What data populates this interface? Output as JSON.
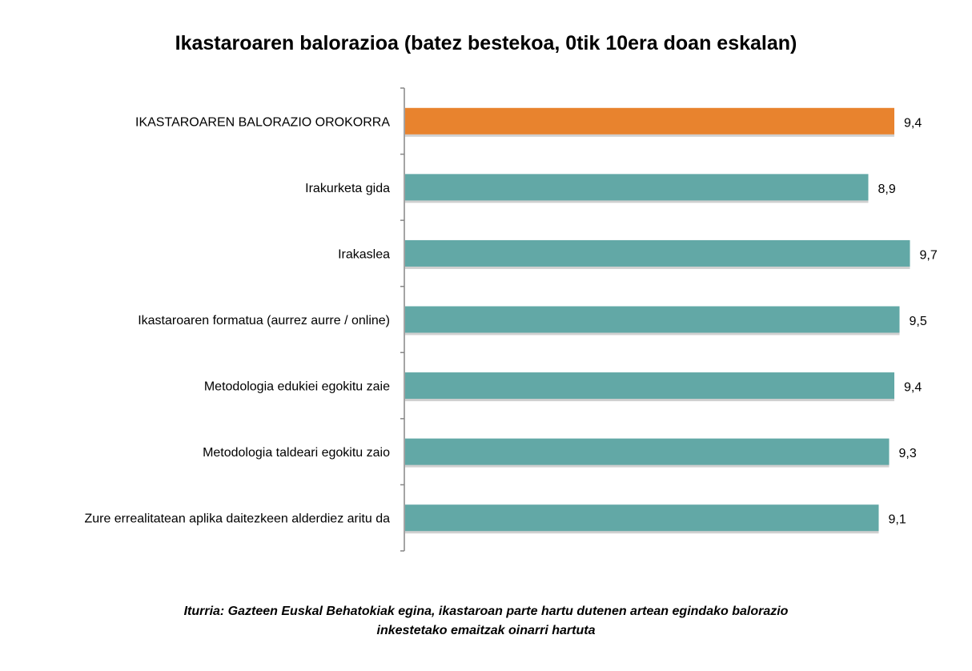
{
  "chart_data": {
    "type": "bar",
    "orientation": "horizontal",
    "title": "Ikastaroaren balorazioa (batez bestekoa, 0tik 10era doan eskalan)",
    "categories": [
      "IKASTAROAREN BALORAZIO OROKORRA",
      "Irakurketa gida",
      "Irakaslea",
      "Ikastaroaren formatua (aurrez aurre / online)",
      "Metodologia edukiei egokitu zaie",
      "Metodologia taldeari egokitu zaio",
      "Zure errealitatean aplika daitezkeen alderdiez aritu da"
    ],
    "values": [
      9.4,
      8.9,
      9.7,
      9.5,
      9.4,
      9.3,
      9.1
    ],
    "data_labels": [
      "9,4",
      "8,9",
      "9,7",
      "9,5",
      "9,4",
      "9,3",
      "9,1"
    ],
    "xlim": [
      0,
      10
    ],
    "grid": false,
    "colors": {
      "highlight": "#E8832E",
      "default": "#62A8A6"
    },
    "highlight_index": 0
  },
  "source": {
    "line1": "Iturria: Gazteen Euskal Behatokiak egina, ikastaroan parte hartu dutenen artean egindako balorazio",
    "line2": "inkestetako emaitzak oinarri hartuta"
  }
}
